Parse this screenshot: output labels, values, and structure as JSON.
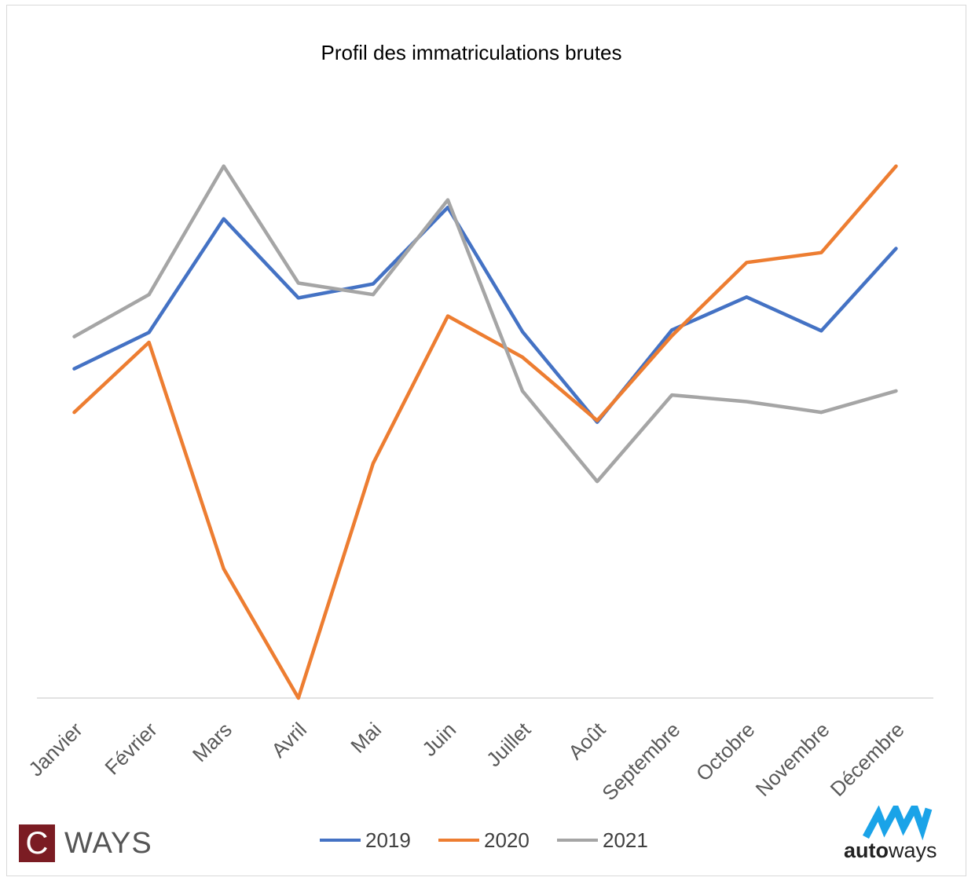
{
  "chart_data": {
    "type": "line",
    "title": "Profil des immatriculations brutes",
    "categories": [
      "Janvier",
      "Février",
      "Mars",
      "Avril",
      "Mai",
      "Juin",
      "Juillet",
      "Août",
      "Septembre",
      "Octobre",
      "Novembre",
      "Décembre"
    ],
    "series": [
      {
        "name": "2019",
        "color": "#4472c4",
        "values": [
          400,
          444,
          582,
          486,
          503,
          596,
          445,
          335,
          447,
          487,
          446,
          546
        ]
      },
      {
        "name": "2020",
        "color": "#ed7d31",
        "values": [
          347,
          432,
          157,
          0,
          285,
          464,
          414,
          337,
          440,
          529,
          541,
          646
        ]
      },
      {
        "name": "2021",
        "color": "#a5a5a5",
        "values": [
          439,
          490,
          646,
          504,
          490,
          605,
          373,
          263,
          368,
          360,
          347,
          373
        ]
      }
    ],
    "ylim": [
      0,
      700
    ],
    "y_axis_visible": false,
    "grid": false,
    "legend_position": "bottom"
  },
  "logos": {
    "left": {
      "letter": "C",
      "text": "WAYS",
      "color": "#7b1c23"
    },
    "right": {
      "text_bold": "auto",
      "text_light": "ways",
      "color": "#1aa3e8"
    }
  }
}
